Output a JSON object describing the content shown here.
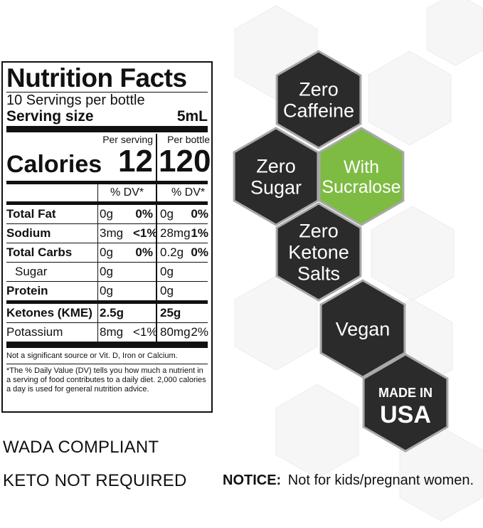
{
  "nutrition": {
    "title": "Nutrition Facts",
    "servings": "10 Servings per bottle",
    "serving_size_label": "Serving size",
    "serving_size_value": "5mL",
    "col1_header": "Per serving",
    "col2_header": "Per bottle",
    "calories_label": "Calories",
    "calories_serving": "12",
    "calories_bottle": "120",
    "dv_header": "% DV*",
    "rows": [
      {
        "name": "Total Fat",
        "a1": "0g",
        "p1": "0%",
        "a2": "0g",
        "p2": "0%"
      },
      {
        "name": "Sodium",
        "a1": "3mg",
        "p1": "<1%",
        "a2": "28mg",
        "p2": "1%"
      },
      {
        "name": "Total Carbs",
        "a1": "0g",
        "p1": "0%",
        "a2": "0.2g",
        "p2": "0%"
      },
      {
        "name": "Sugar",
        "a1": "0g",
        "p1": "",
        "a2": "0g",
        "p2": ""
      },
      {
        "name": "Protein",
        "a1": "0g",
        "p1": "",
        "a2": "0g",
        "p2": ""
      },
      {
        "name": "Ketones (KME)",
        "a1": "2.5g",
        "p1": "",
        "a2": "25g",
        "p2": ""
      },
      {
        "name": "Potassium",
        "a1": "8mg",
        "p1": "<1%",
        "a2": "80mg",
        "p2": "2%"
      }
    ],
    "footnote_1": "Not a significant source or Vit. D, Iron or Calcium.",
    "footnote_2": "*The % Daily Value (DV) tells you how much a nutrient in a serving of food contributes to a daily diet. 2,000 calories a day is used for general nutrition advice."
  },
  "claims": {
    "wada": "WADA COMPLIANT",
    "keto": "KETO NOT REQUIRED"
  },
  "notice": {
    "label": "NOTICE:",
    "text": "Not for kids/pregnant women."
  },
  "badges": {
    "caffeine": [
      "Zero",
      "Caffeine"
    ],
    "sugar": [
      "Zero",
      "Sugar"
    ],
    "sucralose": [
      "With",
      "Sucralose"
    ],
    "ketone": [
      "Zero",
      "Ketone",
      "Salts"
    ],
    "vegan": [
      "Vegan"
    ],
    "usa": [
      "MADE IN",
      "USA"
    ]
  },
  "colors": {
    "dark_hex": "#2b2b2b",
    "green_hex": "#7dbb42",
    "hex_border": "#a9a9a9",
    "ink": "#111111"
  }
}
